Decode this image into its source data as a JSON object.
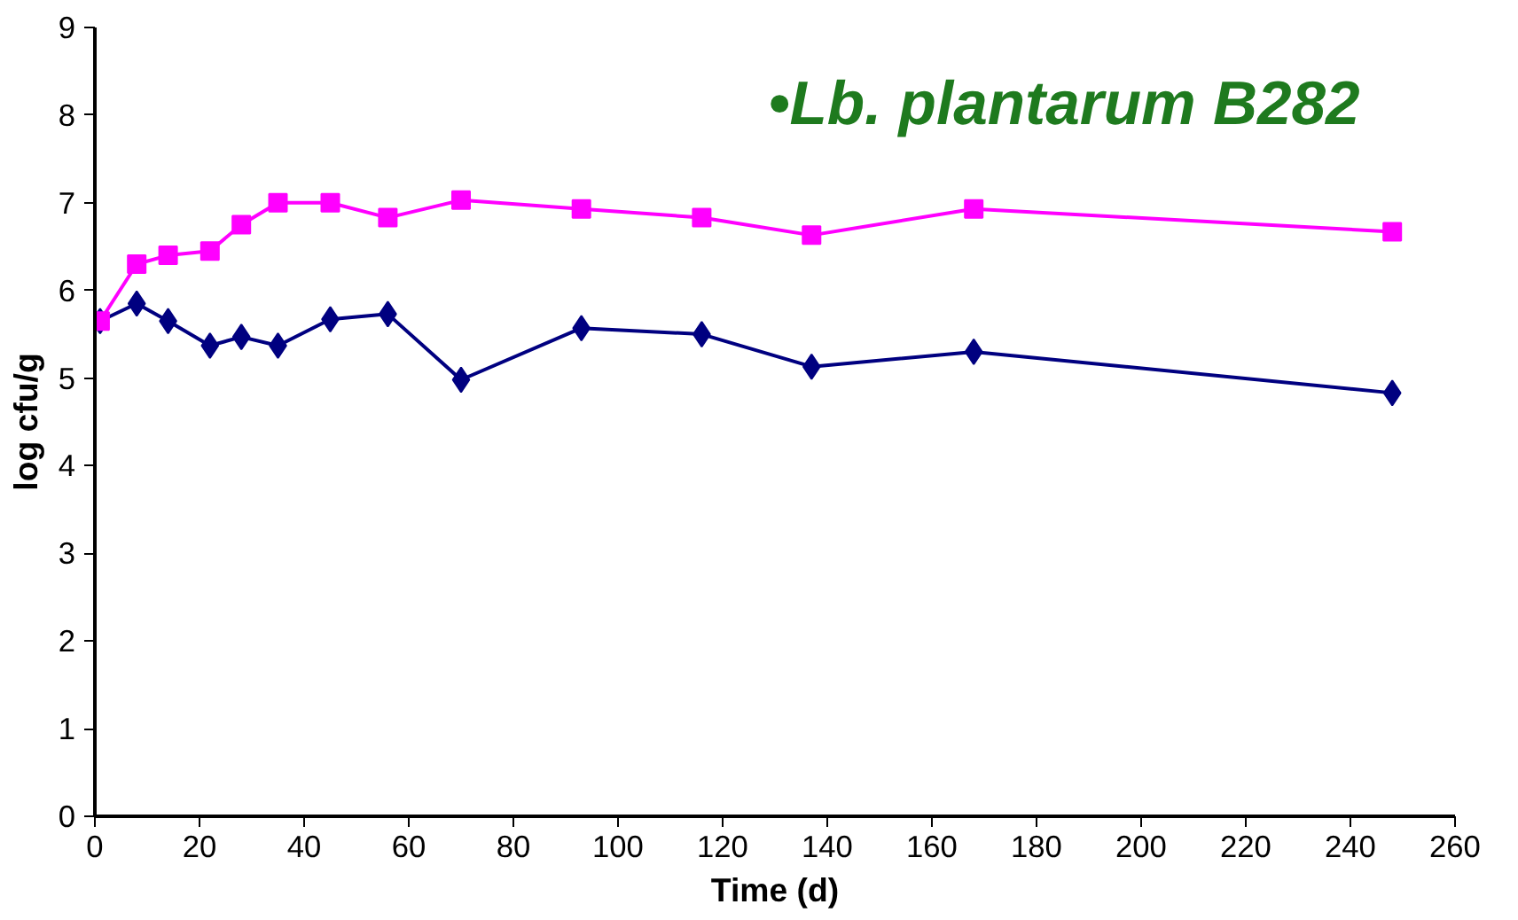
{
  "chart_data": {
    "type": "line",
    "title": "•Lb. plantarum B282",
    "xlabel": "Time (d)",
    "ylabel": "log cfu/g",
    "x": [
      1,
      8,
      14,
      22,
      28,
      35,
      45,
      56,
      70,
      93,
      116,
      137,
      168,
      248
    ],
    "series": [
      {
        "color": "#000080",
        "marker": "diamond",
        "values": [
          5.65,
          5.85,
          5.65,
          5.37,
          5.47,
          5.37,
          5.67,
          5.73,
          4.98,
          5.57,
          5.5,
          5.13,
          5.3,
          4.83
        ]
      },
      {
        "color": "#ff00ff",
        "marker": "square",
        "values": [
          5.65,
          6.3,
          6.4,
          6.45,
          6.75,
          7.0,
          7.0,
          6.83,
          7.03,
          6.93,
          6.83,
          6.63,
          6.93,
          6.67
        ]
      }
    ],
    "xlim": [
      0,
      260
    ],
    "xticks": [
      0,
      20,
      40,
      60,
      80,
      100,
      120,
      140,
      160,
      180,
      200,
      220,
      240,
      260
    ],
    "ylim": [
      0,
      9
    ],
    "yticks": [
      0,
      1,
      2,
      3,
      4,
      5,
      6,
      7,
      8,
      9
    ],
    "grid": false
  }
}
